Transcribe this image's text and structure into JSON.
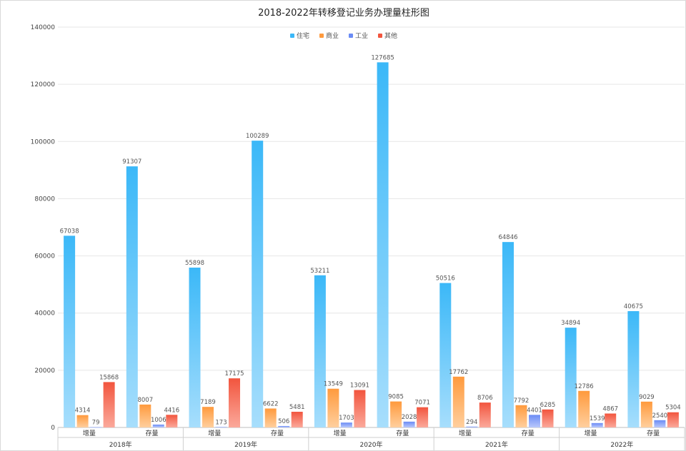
{
  "chart_data": {
    "type": "bar",
    "title": "2018-2022年转移登记业务办理量柱形图",
    "ylim": [
      0,
      140000
    ],
    "yticks": [
      0,
      20000,
      40000,
      60000,
      80000,
      100000,
      120000,
      140000
    ],
    "grid": true,
    "legend_position": "top-center",
    "groups": [
      "2018年",
      "2019年",
      "2020年",
      "2021年",
      "2022年"
    ],
    "categories": [
      "增量",
      "存量",
      "增量",
      "存量",
      "增量",
      "存量",
      "增量",
      "存量",
      "增量",
      "存量"
    ],
    "series": [
      {
        "name": "住宅",
        "color": "#3bb8f8",
        "color_light": "#a7defc",
        "values": [
          67038,
          91307,
          55898,
          100289,
          53211,
          127685,
          50516,
          64846,
          34894,
          40675
        ]
      },
      {
        "name": "商业",
        "color": "#ff9a3d",
        "color_light": "#ffcf9e",
        "values": [
          4314,
          8007,
          7189,
          6622,
          13549,
          9085,
          17762,
          7792,
          12786,
          9029
        ]
      },
      {
        "name": "工业",
        "color": "#6b8cf5",
        "color_light": "#b9c8fb",
        "values": [
          79,
          1006,
          173,
          506,
          1703,
          2028,
          294,
          4401,
          1539,
          2540
        ]
      },
      {
        "name": "其他",
        "color": "#f2553e",
        "color_light": "#fba99b",
        "values": [
          15868,
          4416,
          17175,
          5481,
          13091,
          7071,
          8706,
          6285,
          4867,
          5304
        ]
      }
    ]
  }
}
